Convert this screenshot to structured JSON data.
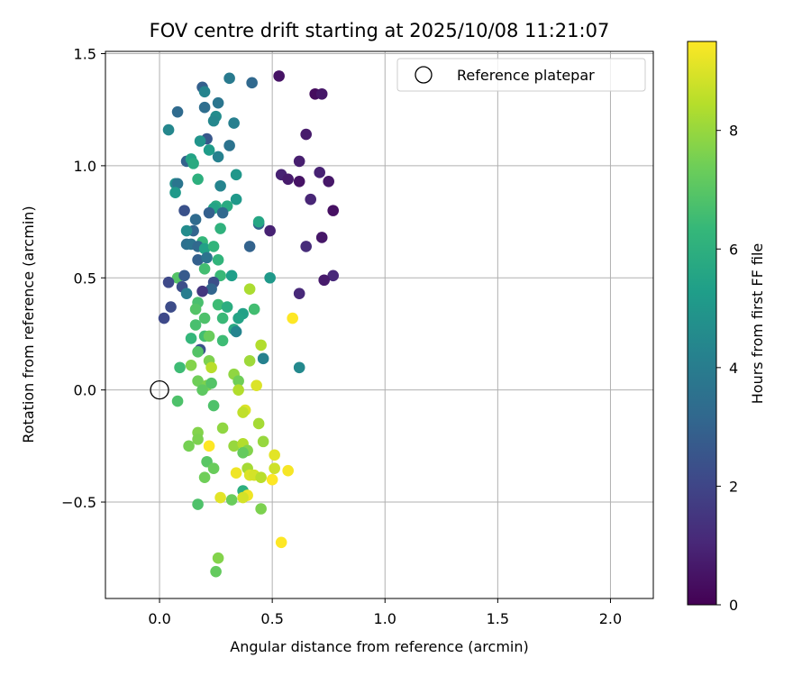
{
  "chart_data": {
    "type": "scatter",
    "title": "FOV centre drift starting at 2025/10/08 11:21:07",
    "xlabel": "Angular distance from reference (arcmin)",
    "ylabel": "Rotation from reference (arcmin)",
    "xlim": [
      -0.24,
      2.19
    ],
    "ylim": [
      -0.93,
      1.51
    ],
    "xticks": [
      0.0,
      0.5,
      1.0,
      1.5,
      2.0
    ],
    "xtick_labels": [
      "0.0",
      "0.5",
      "1.0",
      "1.5",
      "2.0"
    ],
    "yticks": [
      -0.5,
      0.0,
      0.5,
      1.0,
      1.5
    ],
    "ytick_labels": [
      "−0.5",
      "0.0",
      "0.5",
      "1.0",
      "1.5"
    ],
    "grid": true,
    "legend": {
      "position": "top-right",
      "entries": [
        "Reference platepar"
      ]
    },
    "reference_point": {
      "x": 0.0,
      "y": 0.0,
      "label": "Reference platepar",
      "marker": "open-circle"
    },
    "colorbar": {
      "label": "Hours from first FF file",
      "range": [
        0,
        9.5
      ],
      "ticks": [
        0,
        2,
        4,
        6,
        8
      ],
      "tick_labels": [
        "0",
        "2",
        "4",
        "6",
        "8"
      ],
      "colormap": "viridis",
      "colors": [
        "#440154",
        "#482878",
        "#3e4989",
        "#31688e",
        "#26828e",
        "#1f9e89",
        "#35b779",
        "#6ece58",
        "#b5de2b",
        "#fde725"
      ]
    },
    "points": [
      {
        "x": 0.53,
        "y": 1.4,
        "h": 0.5
      },
      {
        "x": 0.69,
        "y": 1.32,
        "h": 0.3
      },
      {
        "x": 0.72,
        "y": 1.32,
        "h": 0.6
      },
      {
        "x": 0.65,
        "y": 1.14,
        "h": 0.7
      },
      {
        "x": 0.62,
        "y": 1.02,
        "h": 0.8
      },
      {
        "x": 0.54,
        "y": 0.96,
        "h": 0.9
      },
      {
        "x": 0.57,
        "y": 0.94,
        "h": 0.7
      },
      {
        "x": 0.62,
        "y": 0.93,
        "h": 0.5
      },
      {
        "x": 0.71,
        "y": 0.97,
        "h": 0.9
      },
      {
        "x": 0.75,
        "y": 0.93,
        "h": 0.6
      },
      {
        "x": 0.67,
        "y": 0.85,
        "h": 1.0
      },
      {
        "x": 0.77,
        "y": 0.8,
        "h": 0.4
      },
      {
        "x": 0.49,
        "y": 0.71,
        "h": 0.9
      },
      {
        "x": 0.72,
        "y": 0.68,
        "h": 0.6
      },
      {
        "x": 0.65,
        "y": 0.64,
        "h": 1.2
      },
      {
        "x": 0.77,
        "y": 0.51,
        "h": 1.1
      },
      {
        "x": 0.73,
        "y": 0.49,
        "h": 0.7
      },
      {
        "x": 0.62,
        "y": 0.43,
        "h": 1.1
      },
      {
        "x": 0.31,
        "y": 1.39,
        "h": 3.9
      },
      {
        "x": 0.41,
        "y": 1.37,
        "h": 3.2
      },
      {
        "x": 0.19,
        "y": 1.35,
        "h": 2.9
      },
      {
        "x": 0.2,
        "y": 1.33,
        "h": 4.3
      },
      {
        "x": 0.26,
        "y": 1.28,
        "h": 3.7
      },
      {
        "x": 0.2,
        "y": 1.26,
        "h": 3.4
      },
      {
        "x": 0.08,
        "y": 1.24,
        "h": 3.3
      },
      {
        "x": 0.25,
        "y": 1.22,
        "h": 4.6
      },
      {
        "x": 0.24,
        "y": 1.2,
        "h": 4.4
      },
      {
        "x": 0.33,
        "y": 1.19,
        "h": 4.1
      },
      {
        "x": 0.04,
        "y": 1.16,
        "h": 4.4
      },
      {
        "x": 0.21,
        "y": 1.12,
        "h": 2.6
      },
      {
        "x": 0.18,
        "y": 1.11,
        "h": 4.9
      },
      {
        "x": 0.22,
        "y": 1.07,
        "h": 5.2
      },
      {
        "x": 0.31,
        "y": 1.09,
        "h": 3.6
      },
      {
        "x": 0.26,
        "y": 1.04,
        "h": 4.2
      },
      {
        "x": 0.12,
        "y": 1.02,
        "h": 3.0
      },
      {
        "x": 0.14,
        "y": 1.03,
        "h": 5.5
      },
      {
        "x": 0.15,
        "y": 1.01,
        "h": 5.8
      },
      {
        "x": 0.34,
        "y": 0.96,
        "h": 5.0
      },
      {
        "x": 0.17,
        "y": 0.94,
        "h": 6.0
      },
      {
        "x": 0.07,
        "y": 0.92,
        "h": 4.7
      },
      {
        "x": 0.08,
        "y": 0.92,
        "h": 3.7
      },
      {
        "x": 0.27,
        "y": 0.91,
        "h": 4.3
      },
      {
        "x": 0.07,
        "y": 0.88,
        "h": 5.1
      },
      {
        "x": 0.34,
        "y": 0.85,
        "h": 5.1
      },
      {
        "x": 0.25,
        "y": 0.82,
        "h": 5.8
      },
      {
        "x": 0.3,
        "y": 0.82,
        "h": 5.8
      },
      {
        "x": 0.24,
        "y": 0.81,
        "h": 5.5
      },
      {
        "x": 0.11,
        "y": 0.8,
        "h": 2.4
      },
      {
        "x": 0.22,
        "y": 0.79,
        "h": 2.9
      },
      {
        "x": 0.28,
        "y": 0.79,
        "h": 3.2
      },
      {
        "x": 0.16,
        "y": 0.76,
        "h": 3.3
      },
      {
        "x": 0.44,
        "y": 0.74,
        "h": 3.0
      },
      {
        "x": 0.44,
        "y": 0.75,
        "h": 5.6
      },
      {
        "x": 0.15,
        "y": 0.71,
        "h": 3.1
      },
      {
        "x": 0.27,
        "y": 0.72,
        "h": 6.1
      },
      {
        "x": 0.12,
        "y": 0.71,
        "h": 4.6
      },
      {
        "x": 0.19,
        "y": 0.66,
        "h": 6.3
      },
      {
        "x": 0.12,
        "y": 0.65,
        "h": 3.5
      },
      {
        "x": 0.14,
        "y": 0.65,
        "h": 3.6
      },
      {
        "x": 0.17,
        "y": 0.64,
        "h": 3.2
      },
      {
        "x": 0.2,
        "y": 0.63,
        "h": 5.4
      },
      {
        "x": 0.24,
        "y": 0.64,
        "h": 6.2
      },
      {
        "x": 0.4,
        "y": 0.64,
        "h": 3.0
      },
      {
        "x": 0.17,
        "y": 0.58,
        "h": 2.9
      },
      {
        "x": 0.21,
        "y": 0.59,
        "h": 3.6
      },
      {
        "x": 0.26,
        "y": 0.58,
        "h": 6.2
      },
      {
        "x": 0.2,
        "y": 0.54,
        "h": 6.6
      },
      {
        "x": 0.08,
        "y": 0.5,
        "h": 6.9
      },
      {
        "x": 0.11,
        "y": 0.51,
        "h": 2.7
      },
      {
        "x": 0.27,
        "y": 0.51,
        "h": 6.4
      },
      {
        "x": 0.32,
        "y": 0.51,
        "h": 5.3
      },
      {
        "x": 0.49,
        "y": 0.5,
        "h": 5.1
      },
      {
        "x": 0.04,
        "y": 0.48,
        "h": 2.1
      },
      {
        "x": 0.1,
        "y": 0.46,
        "h": 2.3
      },
      {
        "x": 0.24,
        "y": 0.48,
        "h": 2.3
      },
      {
        "x": 0.23,
        "y": 0.45,
        "h": 3.1
      },
      {
        "x": 0.12,
        "y": 0.43,
        "h": 4.0
      },
      {
        "x": 0.19,
        "y": 0.44,
        "h": 1.5
      },
      {
        "x": 0.4,
        "y": 0.45,
        "h": 8.3
      },
      {
        "x": 0.17,
        "y": 0.39,
        "h": 6.7
      },
      {
        "x": 0.05,
        "y": 0.37,
        "h": 2.2
      },
      {
        "x": 0.16,
        "y": 0.36,
        "h": 6.9
      },
      {
        "x": 0.26,
        "y": 0.38,
        "h": 6.5
      },
      {
        "x": 0.3,
        "y": 0.37,
        "h": 5.9
      },
      {
        "x": 0.37,
        "y": 0.34,
        "h": 5.4
      },
      {
        "x": 0.02,
        "y": 0.32,
        "h": 2.1
      },
      {
        "x": 0.2,
        "y": 0.32,
        "h": 6.8
      },
      {
        "x": 0.28,
        "y": 0.32,
        "h": 6.4
      },
      {
        "x": 0.35,
        "y": 0.32,
        "h": 5.5
      },
      {
        "x": 0.42,
        "y": 0.36,
        "h": 6.6
      },
      {
        "x": 0.59,
        "y": 0.32,
        "h": 9.5
      },
      {
        "x": 0.16,
        "y": 0.29,
        "h": 6.7
      },
      {
        "x": 0.33,
        "y": 0.27,
        "h": 5.7
      },
      {
        "x": 0.34,
        "y": 0.26,
        "h": 4.3
      },
      {
        "x": 0.14,
        "y": 0.23,
        "h": 6.3
      },
      {
        "x": 0.2,
        "y": 0.24,
        "h": 6.6
      },
      {
        "x": 0.22,
        "y": 0.24,
        "h": 7.3
      },
      {
        "x": 0.28,
        "y": 0.22,
        "h": 6.5
      },
      {
        "x": 0.18,
        "y": 0.18,
        "h": 2.4
      },
      {
        "x": 0.17,
        "y": 0.17,
        "h": 6.9
      },
      {
        "x": 0.45,
        "y": 0.2,
        "h": 8.4
      },
      {
        "x": 0.4,
        "y": 0.13,
        "h": 8.1
      },
      {
        "x": 0.46,
        "y": 0.14,
        "h": 4.2
      },
      {
        "x": 0.22,
        "y": 0.13,
        "h": 7.6
      },
      {
        "x": 0.23,
        "y": 0.1,
        "h": 8.5
      },
      {
        "x": 0.09,
        "y": 0.1,
        "h": 6.5
      },
      {
        "x": 0.14,
        "y": 0.11,
        "h": 7.7
      },
      {
        "x": 0.62,
        "y": 0.1,
        "h": 4.5
      },
      {
        "x": 0.33,
        "y": 0.07,
        "h": 7.9
      },
      {
        "x": 0.35,
        "y": 0.04,
        "h": 7.4
      },
      {
        "x": 0.17,
        "y": 0.04,
        "h": 7.4
      },
      {
        "x": 0.21,
        "y": 0.02,
        "h": 7.6
      },
      {
        "x": 0.23,
        "y": 0.03,
        "h": 6.9
      },
      {
        "x": 0.19,
        "y": 0.0,
        "h": 7.1
      },
      {
        "x": 0.35,
        "y": 0.0,
        "h": 8.4
      },
      {
        "x": 0.43,
        "y": 0.02,
        "h": 9.0
      },
      {
        "x": 0.08,
        "y": -0.05,
        "h": 6.8
      },
      {
        "x": 0.24,
        "y": -0.07,
        "h": 6.8
      },
      {
        "x": 0.38,
        "y": -0.09,
        "h": 9.0
      },
      {
        "x": 0.37,
        "y": -0.1,
        "h": 8.6
      },
      {
        "x": 0.44,
        "y": -0.15,
        "h": 8.2
      },
      {
        "x": 0.28,
        "y": -0.17,
        "h": 7.9
      },
      {
        "x": 0.17,
        "y": -0.19,
        "h": 7.7
      },
      {
        "x": 0.17,
        "y": -0.22,
        "h": 7.6
      },
      {
        "x": 0.46,
        "y": -0.23,
        "h": 8.0
      },
      {
        "x": 0.13,
        "y": -0.25,
        "h": 7.5
      },
      {
        "x": 0.22,
        "y": -0.25,
        "h": 9.5
      },
      {
        "x": 0.33,
        "y": -0.25,
        "h": 8.0
      },
      {
        "x": 0.37,
        "y": -0.24,
        "h": 8.4
      },
      {
        "x": 0.39,
        "y": -0.27,
        "h": 7.7
      },
      {
        "x": 0.37,
        "y": -0.28,
        "h": 7.2
      },
      {
        "x": 0.51,
        "y": -0.29,
        "h": 9.1
      },
      {
        "x": 0.21,
        "y": -0.32,
        "h": 7.0
      },
      {
        "x": 0.24,
        "y": -0.35,
        "h": 7.3
      },
      {
        "x": 0.39,
        "y": -0.35,
        "h": 8.2
      },
      {
        "x": 0.4,
        "y": -0.38,
        "h": 9.0
      },
      {
        "x": 0.34,
        "y": -0.37,
        "h": 9.3
      },
      {
        "x": 0.51,
        "y": -0.35,
        "h": 8.8
      },
      {
        "x": 0.57,
        "y": -0.36,
        "h": 9.4
      },
      {
        "x": 0.2,
        "y": -0.39,
        "h": 7.4
      },
      {
        "x": 0.42,
        "y": -0.38,
        "h": 8.9
      },
      {
        "x": 0.45,
        "y": -0.39,
        "h": 8.5
      },
      {
        "x": 0.5,
        "y": -0.4,
        "h": 9.5
      },
      {
        "x": 0.37,
        "y": -0.45,
        "h": 6.0
      },
      {
        "x": 0.39,
        "y": -0.47,
        "h": 9.3
      },
      {
        "x": 0.37,
        "y": -0.48,
        "h": 8.9
      },
      {
        "x": 0.27,
        "y": -0.48,
        "h": 9.1
      },
      {
        "x": 0.32,
        "y": -0.49,
        "h": 7.3
      },
      {
        "x": 0.17,
        "y": -0.51,
        "h": 6.8
      },
      {
        "x": 0.45,
        "y": -0.53,
        "h": 7.6
      },
      {
        "x": 0.54,
        "y": -0.68,
        "h": 9.5
      },
      {
        "x": 0.26,
        "y": -0.75,
        "h": 7.7
      },
      {
        "x": 0.25,
        "y": -0.81,
        "h": 7.2
      }
    ]
  }
}
